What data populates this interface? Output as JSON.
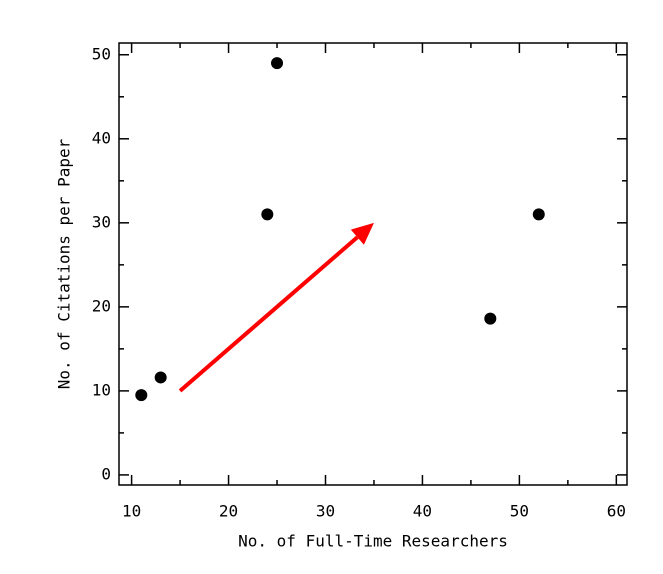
{
  "chart_data": {
    "type": "scatter",
    "x_label": "No. of Full-Time Researchers",
    "y_label": "No. of Citations per Paper",
    "x": [
      11,
      13,
      24,
      25,
      47,
      52
    ],
    "values": [
      9.5,
      11.6,
      31,
      49,
      18.6,
      31
    ],
    "color": "#000000",
    "xlim": [
      8.7,
      61.1
    ],
    "ylim": [
      -1.2,
      51.4
    ],
    "xticks": [
      10,
      20,
      30,
      40,
      50,
      60
    ],
    "yticks": [
      0,
      10,
      20,
      30,
      40,
      50
    ],
    "xminorticks": [
      15,
      25,
      35,
      45,
      55
    ],
    "yminorticks": [
      5,
      15,
      25,
      35,
      45
    ],
    "arrow": {
      "from": [
        15,
        10
      ],
      "to": [
        35,
        30
      ],
      "color": "#ff0000"
    }
  }
}
